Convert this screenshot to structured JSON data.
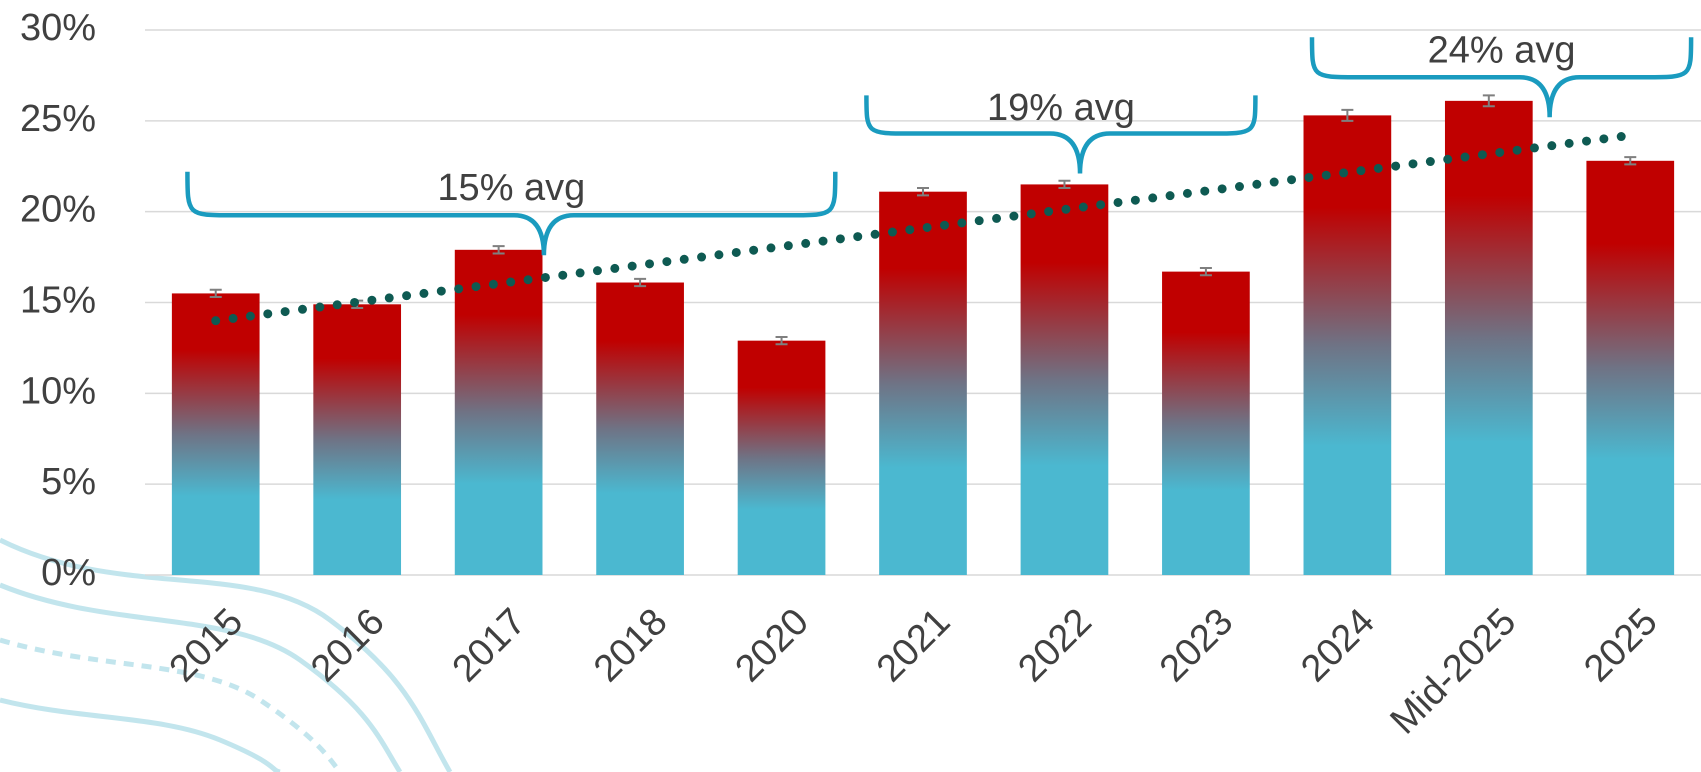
{
  "chart_data": {
    "type": "bar",
    "categories": [
      "2015",
      "2016",
      "2017",
      "2018",
      "2020",
      "2021",
      "2022",
      "2023",
      "2024",
      "Mid-2025",
      "2025"
    ],
    "values": [
      15.5,
      14.9,
      17.9,
      16.1,
      12.9,
      21.1,
      21.5,
      16.7,
      25.3,
      26.1,
      22.8
    ],
    "errors": [
      0.2,
      0.2,
      0.2,
      0.2,
      0.2,
      0.2,
      0.2,
      0.2,
      0.3,
      0.3,
      0.2
    ],
    "gradient": [
      "#c00000",
      "#4bb8d0"
    ],
    "trendline": {
      "values": [
        14.0,
        24.2
      ],
      "color": "#0e5a52"
    },
    "annotations": [
      {
        "text": "15% avg"
      },
      {
        "text": "19% avg"
      },
      {
        "text": "24% avg"
      }
    ],
    "brace_color": "#1a9bbf",
    "ylim": [
      0,
      30
    ],
    "yticks": [
      {
        "value": 0,
        "label": "0%"
      },
      {
        "value": 5,
        "label": "5%"
      },
      {
        "value": 10,
        "label": "10%"
      },
      {
        "value": 15,
        "label": "15%"
      },
      {
        "value": 20,
        "label": "20%"
      },
      {
        "value": 25,
        "label": "25%"
      },
      {
        "value": 30,
        "label": "30%"
      }
    ],
    "grid": true
  }
}
